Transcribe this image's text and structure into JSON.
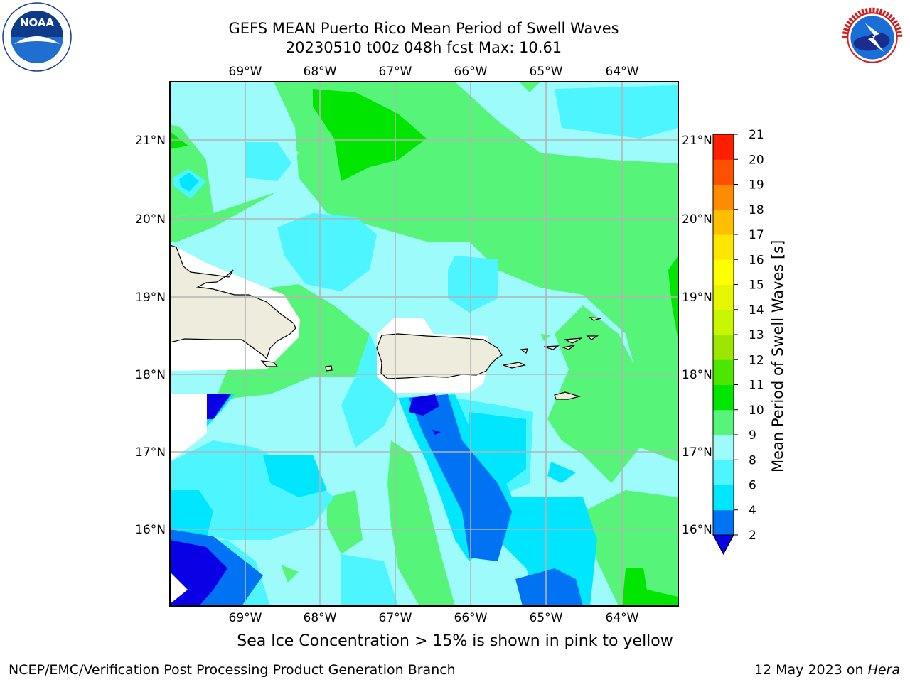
{
  "header": {
    "title_line1": "GEFS MEAN Puerto Rico Mean Period of Swell Waves",
    "title_line2": "20230510 t00z 048h fcst   Max: 10.61"
  },
  "logos": {
    "left": {
      "name": "noaa-logo",
      "text": "NOAA",
      "ring_text": "NATIONAL OCEANIC AND ATMOSPHERIC ADMINISTRATION · U.S. DEPARTMENT OF COMMERCE"
    },
    "right": {
      "name": "nws-logo",
      "ring_text": "NATIONAL WEATHER SERVICE"
    }
  },
  "map": {
    "lon_ticks": [
      "69°W",
      "68°W",
      "67°W",
      "66°W",
      "65°W",
      "64°W"
    ],
    "lat_ticks": [
      "21°N",
      "20°N",
      "19°N",
      "18°N",
      "17°N",
      "16°N"
    ],
    "land_color": "#eeecdc",
    "coast_color": "#000000",
    "grid_color": "#b4b4b4"
  },
  "colorbar": {
    "label": "Mean Period of Swell Waves [s]",
    "ticks": [
      "2",
      "4",
      "6",
      "8",
      "9",
      "10",
      "11",
      "12",
      "13",
      "14",
      "15",
      "16",
      "17",
      "18",
      "19",
      "20",
      "21"
    ],
    "colors": [
      "#0a00e6",
      "#0073f5",
      "#00e6ff",
      "#4cf5ff",
      "#9dfbfb",
      "#56f57a",
      "#00e600",
      "#4ce600",
      "#9de600",
      "#c8f500",
      "#e6f500",
      "#ffff00",
      "#ffe600",
      "#ffbe00",
      "#ff8c00",
      "#ff5000",
      "#ff1e00",
      "#ff0000"
    ]
  },
  "note": "Sea Ice Concentration > 15% is shown in pink to yellow",
  "footer": {
    "left": "NCEP/EMC/Verification Post Processing Product Generation Branch",
    "right_prefix": "12 May 2023 on ",
    "right_host": "Hera"
  }
}
